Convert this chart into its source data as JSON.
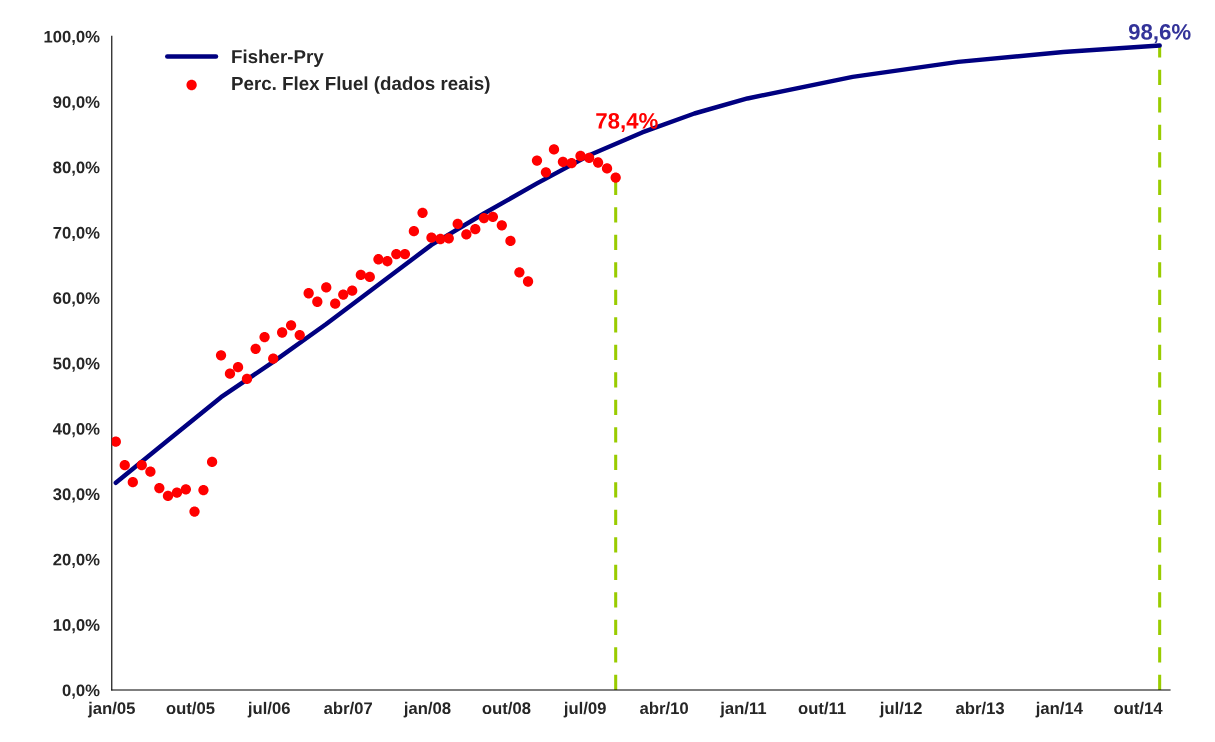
{
  "chart_data": {
    "type": "line",
    "series": [
      {
        "name": "Fisher-Pry",
        "color": "#000080",
        "marker": "none",
        "line_style": "solid",
        "x": [
          "2005-01-15",
          "2005-07-15",
          "2006-01-15",
          "2006-07-15",
          "2007-01-15",
          "2007-07-15",
          "2008-01-15",
          "2008-07-15",
          "2009-01-15",
          "2009-07-15",
          "2010-01-15",
          "2010-07-15",
          "2011-01-15",
          "2012-01-15",
          "2013-01-15",
          "2014-01-15",
          "2014-12-15"
        ],
        "values": [
          31.7,
          38.2,
          44.8,
          50.2,
          56.0,
          62.0,
          68.1,
          72.9,
          77.5,
          81.8,
          85.3,
          88.2,
          90.5,
          93.8,
          96.1,
          97.6,
          98.6
        ]
      },
      {
        "name": "Perc. Flex Fluel (dados reais)",
        "type": "scatter",
        "color": "#ff0000",
        "marker": "circle",
        "x": [
          "2005-01-15",
          "2005-02-15",
          "2005-03-15",
          "2005-04-15",
          "2005-05-15",
          "2005-06-15",
          "2005-07-15",
          "2005-08-15",
          "2005-09-15",
          "2005-10-15",
          "2005-11-15",
          "2005-12-15",
          "2006-01-15",
          "2006-02-15",
          "2006-03-15",
          "2006-04-15",
          "2006-05-15",
          "2006-06-15",
          "2006-07-15",
          "2006-08-15",
          "2006-09-15",
          "2006-10-15",
          "2006-11-15",
          "2006-12-15",
          "2007-01-15",
          "2007-02-15",
          "2007-03-15",
          "2007-04-15",
          "2007-05-15",
          "2007-06-15",
          "2007-07-15",
          "2007-08-15",
          "2007-09-15",
          "2007-10-15",
          "2007-11-15",
          "2007-12-15",
          "2008-01-15",
          "2008-02-15",
          "2008-03-15",
          "2008-04-15",
          "2008-05-15",
          "2008-06-15",
          "2008-07-15",
          "2008-08-15",
          "2008-09-15",
          "2008-10-15",
          "2008-11-15",
          "2008-12-15",
          "2009-01-15",
          "2009-02-15",
          "2009-03-15",
          "2009-04-15",
          "2009-05-15",
          "2009-06-15",
          "2009-07-15",
          "2009-08-15",
          "2009-09-15",
          "2009-10-15"
        ],
        "values": [
          38.0,
          34.4,
          31.8,
          34.4,
          33.4,
          30.9,
          29.7,
          30.2,
          30.7,
          27.3,
          30.6,
          34.9,
          51.2,
          48.4,
          49.4,
          47.6,
          52.2,
          54.0,
          50.7,
          54.7,
          55.8,
          54.3,
          60.7,
          59.4,
          61.6,
          59.1,
          60.5,
          61.1,
          63.5,
          63.2,
          65.9,
          65.6,
          66.7,
          66.7,
          70.2,
          73.0,
          69.2,
          69.0,
          69.1,
          71.3,
          69.7,
          70.5,
          72.2,
          72.4,
          71.1,
          68.7,
          63.9,
          62.5,
          81.0,
          79.2,
          82.7,
          80.8,
          80.6,
          81.7,
          81.4,
          80.7,
          79.8,
          78.4
        ]
      }
    ],
    "annotations": [
      {
        "text": "78,4%",
        "x": "2009-10-15",
        "y": 78.4
      },
      {
        "text": "98,6%",
        "x": "2014-12-15",
        "y": 98.6
      }
    ],
    "ref_lines": [
      {
        "axis": "x",
        "value": "2009-10-15",
        "color": "#99cc00",
        "line_style": "dashed"
      },
      {
        "axis": "x",
        "value": "2014-12-15",
        "color": "#99cc00",
        "line_style": "dashed"
      }
    ],
    "xlim": [
      "2005-01-01",
      "2015-01-20"
    ],
    "xticks": [
      {
        "value": "2005-01-01",
        "label": "jan/05"
      },
      {
        "value": "2005-10-01",
        "label": "out/05"
      },
      {
        "value": "2006-07-01",
        "label": "jul/06"
      },
      {
        "value": "2007-04-01",
        "label": "abr/07"
      },
      {
        "value": "2008-01-01",
        "label": "jan/08"
      },
      {
        "value": "2008-10-01",
        "label": "out/08"
      },
      {
        "value": "2009-07-01",
        "label": "jul/09"
      },
      {
        "value": "2010-04-01",
        "label": "abr/10"
      },
      {
        "value": "2011-01-01",
        "label": "jan/11"
      },
      {
        "value": "2011-10-01",
        "label": "out/11"
      },
      {
        "value": "2012-07-01",
        "label": "jul/12"
      },
      {
        "value": "2013-04-01",
        "label": "abr/13"
      },
      {
        "value": "2014-01-01",
        "label": "jan/14"
      },
      {
        "value": "2014-10-01",
        "label": "out/14"
      }
    ],
    "ylim": [
      0,
      100
    ],
    "yticks": [
      {
        "value": 0,
        "label": "0,0%"
      },
      {
        "value": 10,
        "label": "10,0%"
      },
      {
        "value": 20,
        "label": "20,0%"
      },
      {
        "value": 30,
        "label": "30,0%"
      },
      {
        "value": 40,
        "label": "40,0%"
      },
      {
        "value": 50,
        "label": "50,0%"
      },
      {
        "value": 60,
        "label": "60,0%"
      },
      {
        "value": 70,
        "label": "70,0%"
      },
      {
        "value": 80,
        "label": "80,0%"
      },
      {
        "value": 90,
        "label": "90,0%"
      },
      {
        "value": 100,
        "label": "100,0%"
      }
    ],
    "grid": false,
    "legend": "top left"
  }
}
